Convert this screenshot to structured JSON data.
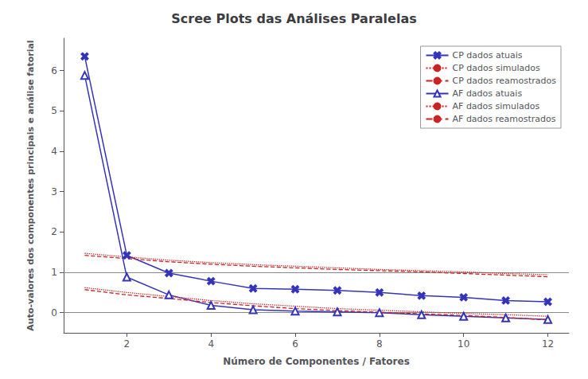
{
  "chart_data": {
    "type": "line",
    "title": "Scree Plots das Análises Paralelas",
    "xlabel": "Número de Componentes / Fatores",
    "ylabel": "Auto-valores dos componentes principais e análise fatorial",
    "x": [
      1,
      2,
      3,
      4,
      5,
      6,
      7,
      8,
      9,
      10,
      11,
      12
    ],
    "xlim": [
      0.5,
      12.5
    ],
    "xticks": [
      2,
      4,
      6,
      8,
      10,
      12
    ],
    "ylim": [
      -0.5,
      6.8
    ],
    "yticks": [
      0,
      1,
      2,
      3,
      4,
      5,
      6
    ],
    "hlines": [
      0,
      1
    ],
    "grid": false,
    "legend": "upper right",
    "series": [
      {
        "name": "CP dados atuais",
        "color": "#3333BB",
        "marker": "x",
        "line_style": "solid",
        "values": [
          6.35,
          1.42,
          0.98,
          0.78,
          0.6,
          0.58,
          0.55,
          0.5,
          0.42,
          0.38,
          0.3,
          0.27
        ]
      },
      {
        "name": "CP dados simulados",
        "color": "#CC2222",
        "line_style": "dotted",
        "values": [
          1.47,
          1.38,
          1.3,
          1.24,
          1.19,
          1.15,
          1.11,
          1.07,
          1.04,
          1.01,
          0.97,
          0.94
        ]
      },
      {
        "name": "CP dados reamostrados",
        "color": "#CC2222",
        "line_style": "dashed",
        "values": [
          1.42,
          1.34,
          1.26,
          1.2,
          1.15,
          1.11,
          1.07,
          1.04,
          1.01,
          0.97,
          0.93,
          0.89
        ]
      },
      {
        "name": "AF dados atuais",
        "color": "#3333BB",
        "marker": "triangle",
        "line_style": "solid",
        "values": [
          5.88,
          0.88,
          0.44,
          0.18,
          0.07,
          0.04,
          0.02,
          0.0,
          -0.05,
          -0.09,
          -0.13,
          -0.17
        ]
      },
      {
        "name": "AF dados simulados",
        "color": "#CC2222",
        "line_style": "dotted",
        "values": [
          0.62,
          0.5,
          0.4,
          0.3,
          0.22,
          0.16,
          0.1,
          0.06,
          0.02,
          -0.02,
          -0.05,
          -0.09
        ]
      },
      {
        "name": "AF dados reamostrados",
        "color": "#CC2222",
        "line_style": "dashed",
        "values": [
          0.57,
          0.44,
          0.35,
          0.25,
          0.17,
          0.1,
          0.05,
          0.01,
          -0.03,
          -0.07,
          -0.12,
          -0.18
        ]
      }
    ]
  }
}
